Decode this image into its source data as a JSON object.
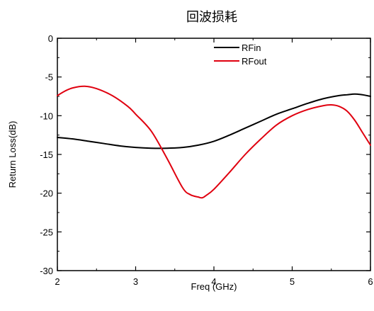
{
  "chart_data": {
    "type": "line",
    "title": "回波损耗",
    "xlabel": "Freq (GHz)",
    "ylabel": "Return Loss(dB)",
    "xlim": [
      2,
      6
    ],
    "ylim": [
      -30,
      0
    ],
    "xticks": [
      2,
      3,
      4,
      5,
      6
    ],
    "xtick_labels": [
      "2",
      "3",
      "4",
      "5",
      "6"
    ],
    "yticks": [
      0,
      -5,
      -10,
      -15,
      -20,
      -25,
      -30
    ],
    "ytick_labels": [
      "0",
      "-5",
      "-10",
      "-15",
      "-20",
      "-25",
      "-30"
    ],
    "grid": false,
    "legend_position": "top-right",
    "series": [
      {
        "name": "RFin",
        "color": "#000000",
        "x": [
          2.0,
          2.2,
          2.4,
          2.6,
          2.8,
          3.0,
          3.2,
          3.4,
          3.6,
          3.8,
          4.0,
          4.2,
          4.4,
          4.6,
          4.8,
          5.0,
          5.2,
          5.4,
          5.6,
          5.7,
          5.8,
          5.9,
          6.0
        ],
        "y": [
          -12.8,
          -13.0,
          -13.3,
          -13.6,
          -13.9,
          -14.1,
          -14.2,
          -14.2,
          -14.1,
          -13.8,
          -13.3,
          -12.5,
          -11.6,
          -10.7,
          -9.8,
          -9.1,
          -8.4,
          -7.8,
          -7.4,
          -7.3,
          -7.2,
          -7.3,
          -7.5
        ]
      },
      {
        "name": "RFout",
        "color": "#e0000f",
        "x": [
          2.0,
          2.1,
          2.2,
          2.35,
          2.5,
          2.7,
          2.9,
          3.0,
          3.2,
          3.4,
          3.6,
          3.7,
          3.8,
          3.85,
          3.9,
          4.0,
          4.2,
          4.4,
          4.6,
          4.8,
          5.0,
          5.2,
          5.4,
          5.5,
          5.6,
          5.7,
          5.8,
          5.9,
          6.0
        ],
        "y": [
          -7.4,
          -6.8,
          -6.4,
          -6.2,
          -6.5,
          -7.4,
          -8.8,
          -9.8,
          -12.0,
          -15.5,
          -19.3,
          -20.2,
          -20.5,
          -20.6,
          -20.3,
          -19.5,
          -17.3,
          -15.0,
          -13.0,
          -11.2,
          -10.0,
          -9.2,
          -8.7,
          -8.6,
          -8.8,
          -9.4,
          -10.6,
          -12.2,
          -13.8
        ]
      }
    ]
  }
}
